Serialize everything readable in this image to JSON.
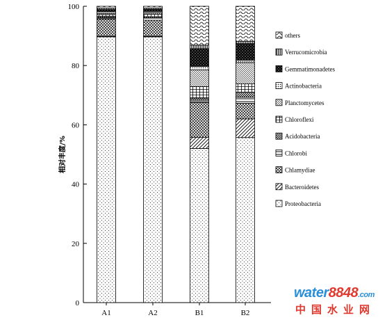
{
  "chart_data": {
    "type": "bar",
    "stacked": true,
    "orientation": "vertical",
    "categories": [
      "A1",
      "A2",
      "B1",
      "B2"
    ],
    "ylabel": "相对丰度/%",
    "ylim": [
      0,
      100
    ],
    "yticks": [
      0,
      20,
      40,
      60,
      80,
      100
    ],
    "legend_position": "right",
    "series": [
      {
        "name": "Proteobacteria",
        "pattern": "dots",
        "values": [
          89.7,
          89.7,
          52.0,
          55.7
        ]
      },
      {
        "name": "Bacteroidetes",
        "pattern": "diagonal",
        "values": [
          0.2,
          0.2,
          3.8,
          6.3
        ]
      },
      {
        "name": "Chlamydiae",
        "pattern": "crosshatch",
        "values": [
          5.8,
          5.4,
          11.7,
          5.3
        ]
      },
      {
        "name": "Chlorobi",
        "pattern": "horizontal",
        "values": [
          0.5,
          0.8,
          0.8,
          2.0
        ]
      },
      {
        "name": "Acidobacteria",
        "pattern": "densecheck",
        "values": [
          0.4,
          0.4,
          0.7,
          1.7
        ]
      },
      {
        "name": "Chloroflexi",
        "pattern": "grid",
        "values": [
          0.6,
          0.8,
          3.9,
          2.8
        ]
      },
      {
        "name": "Planctomycetes",
        "pattern": "smalldiag",
        "values": [
          0.4,
          0.5,
          5.6,
          7.2
        ]
      },
      {
        "name": "Actinobacteria",
        "pattern": "densedots",
        "values": [
          0.5,
          0.4,
          1.2,
          0.8
        ]
      },
      {
        "name": "Gemmatimonadetes",
        "pattern": "checker",
        "values": [
          0.8,
          0.8,
          6.0,
          5.6
        ]
      },
      {
        "name": "Verrucomicrobia",
        "pattern": "vertical",
        "values": [
          0.5,
          0.4,
          1.2,
          0.8
        ]
      },
      {
        "name": "others",
        "pattern": "wave",
        "values": [
          0.6,
          0.6,
          13.1,
          11.8
        ]
      }
    ]
  },
  "watermark": {
    "logo_word": "water",
    "logo_number": "8848",
    "logo_suffix": ".com",
    "chinese_name": "中国水业网"
  }
}
